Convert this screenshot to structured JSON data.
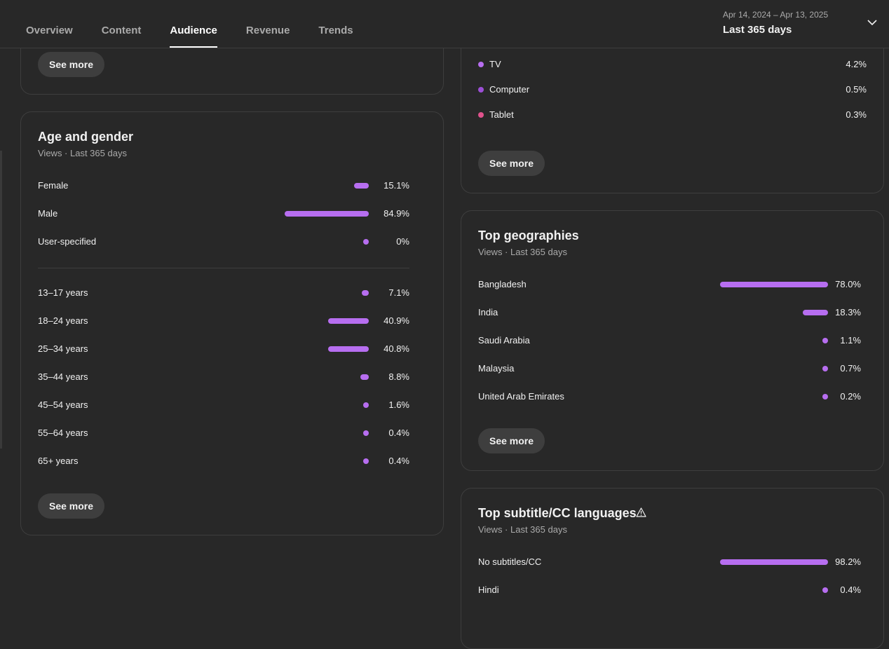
{
  "header": {
    "tabs": [
      {
        "label": "Overview"
      },
      {
        "label": "Content"
      },
      {
        "label": "Audience"
      },
      {
        "label": "Revenue"
      },
      {
        "label": "Trends"
      }
    ],
    "date_range": "Apr 14, 2024 – Apr 13, 2025",
    "date_label": "Last 365 days"
  },
  "top_left_card": {
    "see_more": "See more"
  },
  "devices": {
    "items": [
      {
        "label": "TV",
        "value": "4.2%",
        "color": "#b76ef0"
      },
      {
        "label": "Computer",
        "value": "0.5%",
        "color": "#9c4fd6"
      },
      {
        "label": "Tablet",
        "value": "0.3%",
        "color": "#e0528c"
      }
    ],
    "see_more": "See more"
  },
  "age_gender": {
    "title": "Age and gender",
    "subtitle": "Views · Last 365 days",
    "gender": [
      {
        "label": "Female",
        "value": "15.1%",
        "pct": 15.1
      },
      {
        "label": "Male",
        "value": "84.9%",
        "pct": 84.9
      },
      {
        "label": "User-specified",
        "value": "0%",
        "pct": 0
      }
    ],
    "ages": [
      {
        "label": "13–17 years",
        "value": "7.1%",
        "pct": 7.1
      },
      {
        "label": "18–24 years",
        "value": "40.9%",
        "pct": 40.9
      },
      {
        "label": "25–34 years",
        "value": "40.8%",
        "pct": 40.8
      },
      {
        "label": "35–44 years",
        "value": "8.8%",
        "pct": 8.8
      },
      {
        "label": "45–54 years",
        "value": "1.6%",
        "pct": 1.6
      },
      {
        "label": "55–64 years",
        "value": "0.4%",
        "pct": 0.4
      },
      {
        "label": "65+ years",
        "value": "0.4%",
        "pct": 0.4
      }
    ],
    "see_more": "See more"
  },
  "geographies": {
    "title": "Top geographies",
    "subtitle": "Views · Last 365 days",
    "items": [
      {
        "label": "Bangladesh",
        "value": "78.0%",
        "pct": 78.0
      },
      {
        "label": "India",
        "value": "18.3%",
        "pct": 18.3
      },
      {
        "label": "Saudi Arabia",
        "value": "1.1%",
        "pct": 1.1
      },
      {
        "label": "Malaysia",
        "value": "0.7%",
        "pct": 0.7
      },
      {
        "label": "United Arab Emirates",
        "value": "0.2%",
        "pct": 0.2
      }
    ],
    "see_more": "See more"
  },
  "subtitles": {
    "title": "Top subtitle/CC languages",
    "subtitle": "Views · Last 365 days",
    "warning_icon": "warning-icon",
    "items": [
      {
        "label": "No subtitles/CC",
        "value": "98.2%",
        "pct": 98.2
      },
      {
        "label": "Hindi",
        "value": "0.4%",
        "pct": 0.4
      }
    ]
  },
  "colors": {
    "bar": "#b76ef0",
    "card_border": "#3e3e3e",
    "background": "#282828"
  }
}
